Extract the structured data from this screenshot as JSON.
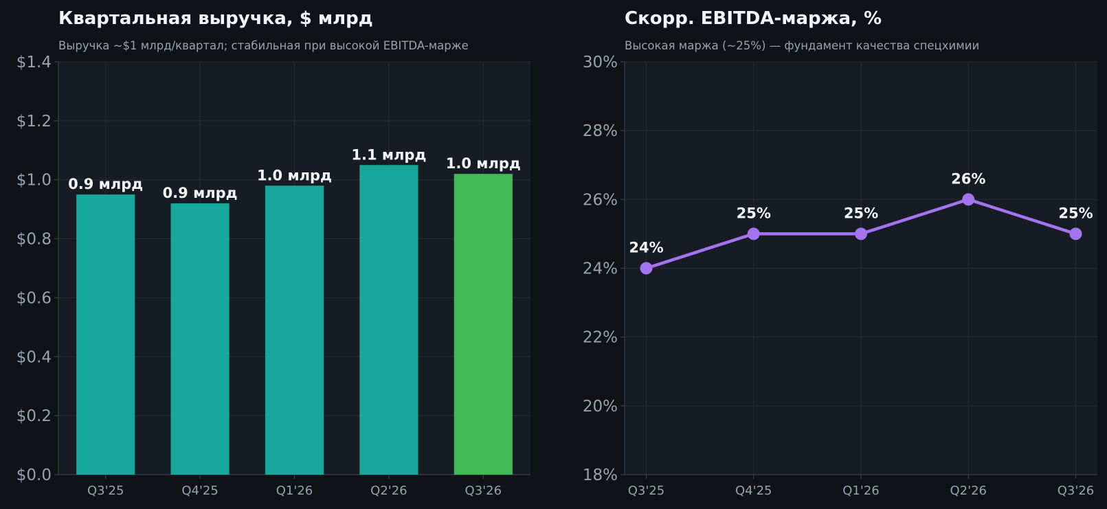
{
  "colors": {
    "page_background": "#0f1317",
    "plot_background": "#171b23",
    "bar_teal": "#15a89b",
    "bar_green": "#41b955",
    "line_purple": "#a373f0",
    "text_primary": "#f2f4f7",
    "text_muted": "#98a1ad"
  },
  "chart_data": [
    {
      "type": "bar",
      "title": "Квартальная выручка, $ млрд",
      "subtitle": "Выручка ~$1 млрд/квартал; стабильная при высокой EBITDA-марже",
      "xlabel": "",
      "ylabel": "",
      "categories": [
        "Q3'25",
        "Q4'25",
        "Q1'26",
        "Q2'26",
        "Q3'26"
      ],
      "values": [
        0.95,
        0.92,
        0.98,
        1.05,
        1.02
      ],
      "data_labels": [
        "0.9 млрд",
        "0.9 млрд",
        "1.0 млрд",
        "1.1 млрд",
        "1.0 млрд"
      ],
      "bar_colors": [
        "#15a89b",
        "#15a89b",
        "#15a89b",
        "#15a89b",
        "#41b955"
      ],
      "ylim": [
        0,
        1.4
      ],
      "yticks": [
        0,
        0.2,
        0.4,
        0.6,
        0.8,
        1.0,
        1.2,
        1.4
      ],
      "ytick_labels": [
        "$0.0",
        "$0.2",
        "$0.4",
        "$0.6",
        "$0.8",
        "$1.0",
        "$1.2",
        "$1.4"
      ],
      "grid": true,
      "legend": "none"
    },
    {
      "type": "line",
      "title": "Скорр. EBITDA-маржа, %",
      "subtitle": "Высокая маржа (~25%) — фундамент качества спецхимии",
      "xlabel": "",
      "ylabel": "",
      "categories": [
        "Q3'25",
        "Q4'25",
        "Q1'26",
        "Q2'26",
        "Q3'26"
      ],
      "values": [
        24,
        25,
        25,
        26,
        25
      ],
      "data_labels": [
        "24%",
        "25%",
        "25%",
        "26%",
        "25%"
      ],
      "line_color": "#a373f0",
      "ylim": [
        18,
        30
      ],
      "yticks": [
        18,
        20,
        22,
        24,
        26,
        28,
        30
      ],
      "ytick_labels": [
        "18%",
        "20%",
        "22%",
        "24%",
        "26%",
        "28%",
        "30%"
      ],
      "grid": true,
      "legend": "none"
    }
  ]
}
